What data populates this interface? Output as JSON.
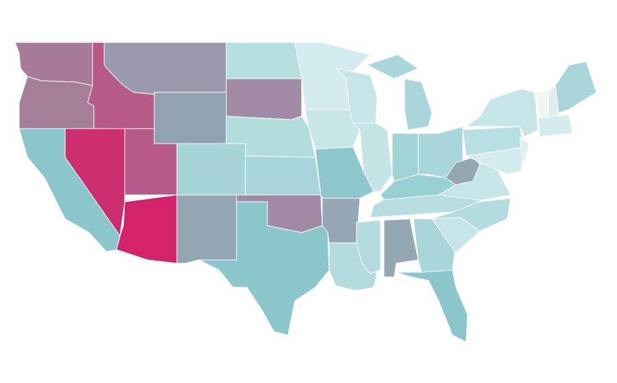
{
  "map": {
    "regions": [
      {
        "color": "#a87a9a"
      },
      {
        "color": "#a57e98"
      },
      {
        "color": "#b65a89"
      },
      {
        "color": "#9a9aae"
      },
      {
        "color": "#93a2b2"
      },
      {
        "color": "#b6dfe0"
      },
      {
        "color": "#a08aa4"
      },
      {
        "color": "#b3dcdd"
      },
      {
        "color": "#a6d5d7"
      },
      {
        "color": "#a6d6da"
      },
      {
        "color": "#a08aa4"
      },
      {
        "color": "#8ac6cc"
      },
      {
        "color": "#93a6b2"
      },
      {
        "color": "#d4226a"
      },
      {
        "color": "#b65a89"
      },
      {
        "color": "#cc2e70"
      },
      {
        "color": "#8ac6cc"
      },
      {
        "color": "#d4ecee"
      },
      {
        "color": "#c8e6e8"
      },
      {
        "color": "#8ec8cc"
      },
      {
        "color": "#97a6b4"
      },
      {
        "color": "#b4dcdf"
      },
      {
        "color": "#c6e5e8"
      },
      {
        "color": "#c5e4e6"
      },
      {
        "color": "#a8d6da"
      },
      {
        "color": "#a8d6da"
      },
      {
        "color": "#a2d3d6"
      },
      {
        "color": "#a8d6da"
      },
      {
        "color": "#98d0d4"
      },
      {
        "color": "#b6dee0"
      },
      {
        "color": "#b4dcdf"
      },
      {
        "color": "#94a8b4"
      },
      {
        "color": "#a8d6da"
      },
      {
        "color": "#8ac6cc"
      },
      {
        "color": "#c6e5e8"
      },
      {
        "color": "#b4dcdf"
      },
      {
        "color": "#c6e5e8"
      },
      {
        "color": "#93a8b4"
      },
      {
        "color": "#b8e0e2"
      },
      {
        "color": "#c6e5e8"
      },
      {
        "color": "#d4ecee"
      },
      {
        "color": "#e0f0f2"
      },
      {
        "color": "#f0f5f5"
      },
      {
        "color": "#e0eef0"
      },
      {
        "color": "#a8d6da"
      },
      {
        "color": "#d4ecee"
      }
    ]
  }
}
